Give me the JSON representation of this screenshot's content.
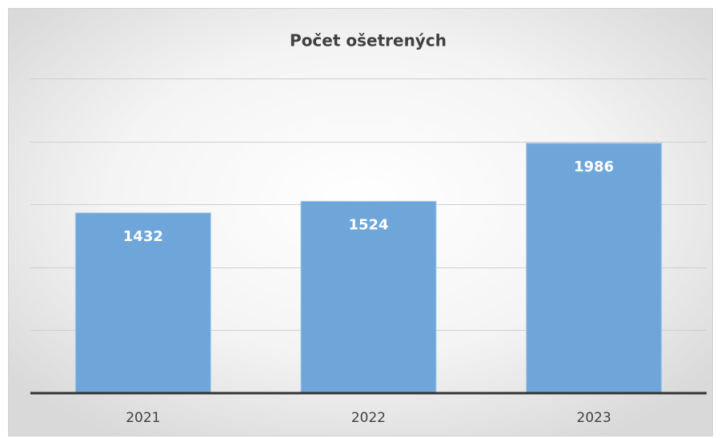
{
  "chart_data": {
    "type": "bar",
    "title": "Počet ošetrených",
    "categories": [
      "2021",
      "2022",
      "2023"
    ],
    "values": [
      1432,
      1524,
      1986
    ],
    "color": "#6fa6da",
    "ylim": [
      0,
      2500
    ],
    "yticks": [
      0,
      500,
      1000,
      1500,
      2000,
      2500
    ],
    "grid": true
  }
}
